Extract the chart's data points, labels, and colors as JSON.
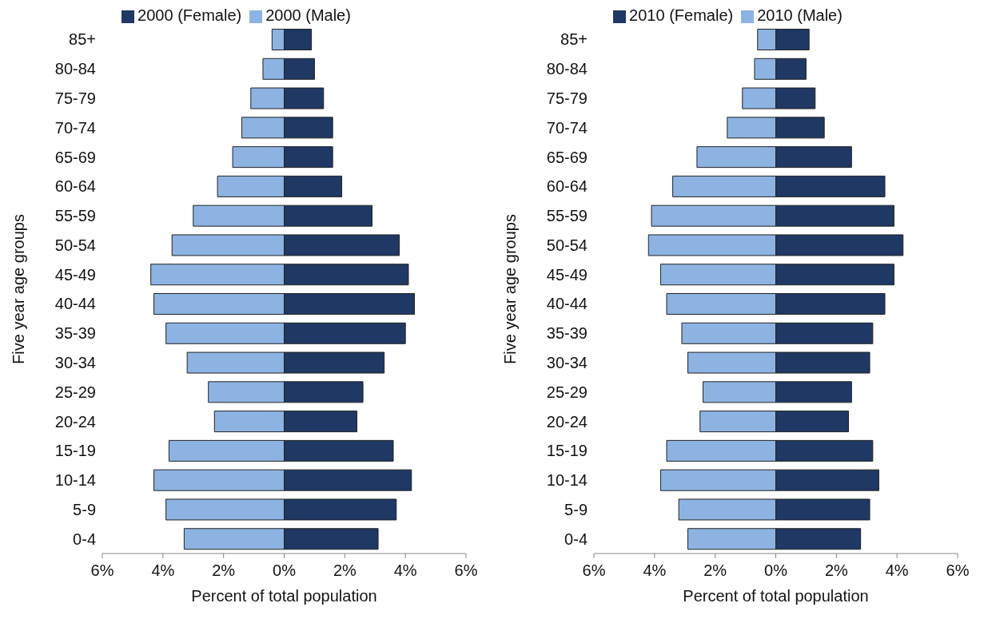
{
  "chart_data": [
    {
      "type": "bar",
      "orientation": "horizontal",
      "stacked": true,
      "xlabel": "Percent of total population",
      "ylabel": "Five year age groups",
      "legend": "top",
      "grid": false,
      "categories": [
        "85+",
        "80-84",
        "75-79",
        "70-74",
        "65-69",
        "60-64",
        "55-59",
        "50-54",
        "45-49",
        "40-44",
        "35-39",
        "30-34",
        "25-29",
        "20-24",
        "15-19",
        "10-14",
        "5-9",
        "0-4"
      ],
      "series": [
        {
          "name": "2000 (Male)",
          "color": "#8db3e2",
          "values": [
            -0.4,
            -0.7,
            -1.1,
            -1.4,
            -1.7,
            -2.2,
            -3.0,
            -3.7,
            -4.4,
            -4.3,
            -3.9,
            -3.2,
            -2.5,
            -2.3,
            -3.8,
            -4.3,
            -3.9,
            -3.3
          ]
        },
        {
          "name": "2000 (Female)",
          "color": "#1f3864",
          "values": [
            0.9,
            1.0,
            1.3,
            1.6,
            1.6,
            1.9,
            2.9,
            3.8,
            4.1,
            4.3,
            4.0,
            3.3,
            2.6,
            2.4,
            3.6,
            4.2,
            3.7,
            3.1
          ]
        }
      ],
      "xlim": [
        -6,
        6
      ],
      "xticks": [
        {
          "value": -6,
          "label": "6%"
        },
        {
          "value": -4,
          "label": "4%"
        },
        {
          "value": -2,
          "label": "2%"
        },
        {
          "value": 0,
          "label": "0%"
        },
        {
          "value": 2,
          "label": "2%"
        },
        {
          "value": 4,
          "label": "4%"
        },
        {
          "value": 6,
          "label": "6%"
        }
      ]
    },
    {
      "type": "bar",
      "orientation": "horizontal",
      "stacked": true,
      "xlabel": "Percent of total population",
      "ylabel": "Five year age groups",
      "legend": "top",
      "grid": false,
      "categories": [
        "85+",
        "80-84",
        "75-79",
        "70-74",
        "65-69",
        "60-64",
        "55-59",
        "50-54",
        "45-49",
        "40-44",
        "35-39",
        "30-34",
        "25-29",
        "20-24",
        "15-19",
        "10-14",
        "5-9",
        "0-4"
      ],
      "series": [
        {
          "name": "2010 (Male)",
          "color": "#8db3e2",
          "values": [
            -0.6,
            -0.7,
            -1.1,
            -1.6,
            -2.6,
            -3.4,
            -4.1,
            -4.2,
            -3.8,
            -3.6,
            -3.1,
            -2.9,
            -2.4,
            -2.5,
            -3.6,
            -3.8,
            -3.2,
            -2.9
          ]
        },
        {
          "name": "2010 (Female)",
          "color": "#1f3864",
          "values": [
            1.1,
            1.0,
            1.3,
            1.6,
            2.5,
            3.6,
            3.9,
            4.2,
            3.9,
            3.6,
            3.2,
            3.1,
            2.5,
            2.4,
            3.2,
            3.4,
            3.1,
            2.8
          ]
        }
      ],
      "xlim": [
        -6,
        6
      ],
      "xticks": [
        {
          "value": -6,
          "label": "6%"
        },
        {
          "value": -4,
          "label": "4%"
        },
        {
          "value": -2,
          "label": "2%"
        },
        {
          "value": 0,
          "label": "0%"
        },
        {
          "value": 2,
          "label": "2%"
        },
        {
          "value": 4,
          "label": "4%"
        },
        {
          "value": 6,
          "label": "6%"
        }
      ]
    }
  ]
}
